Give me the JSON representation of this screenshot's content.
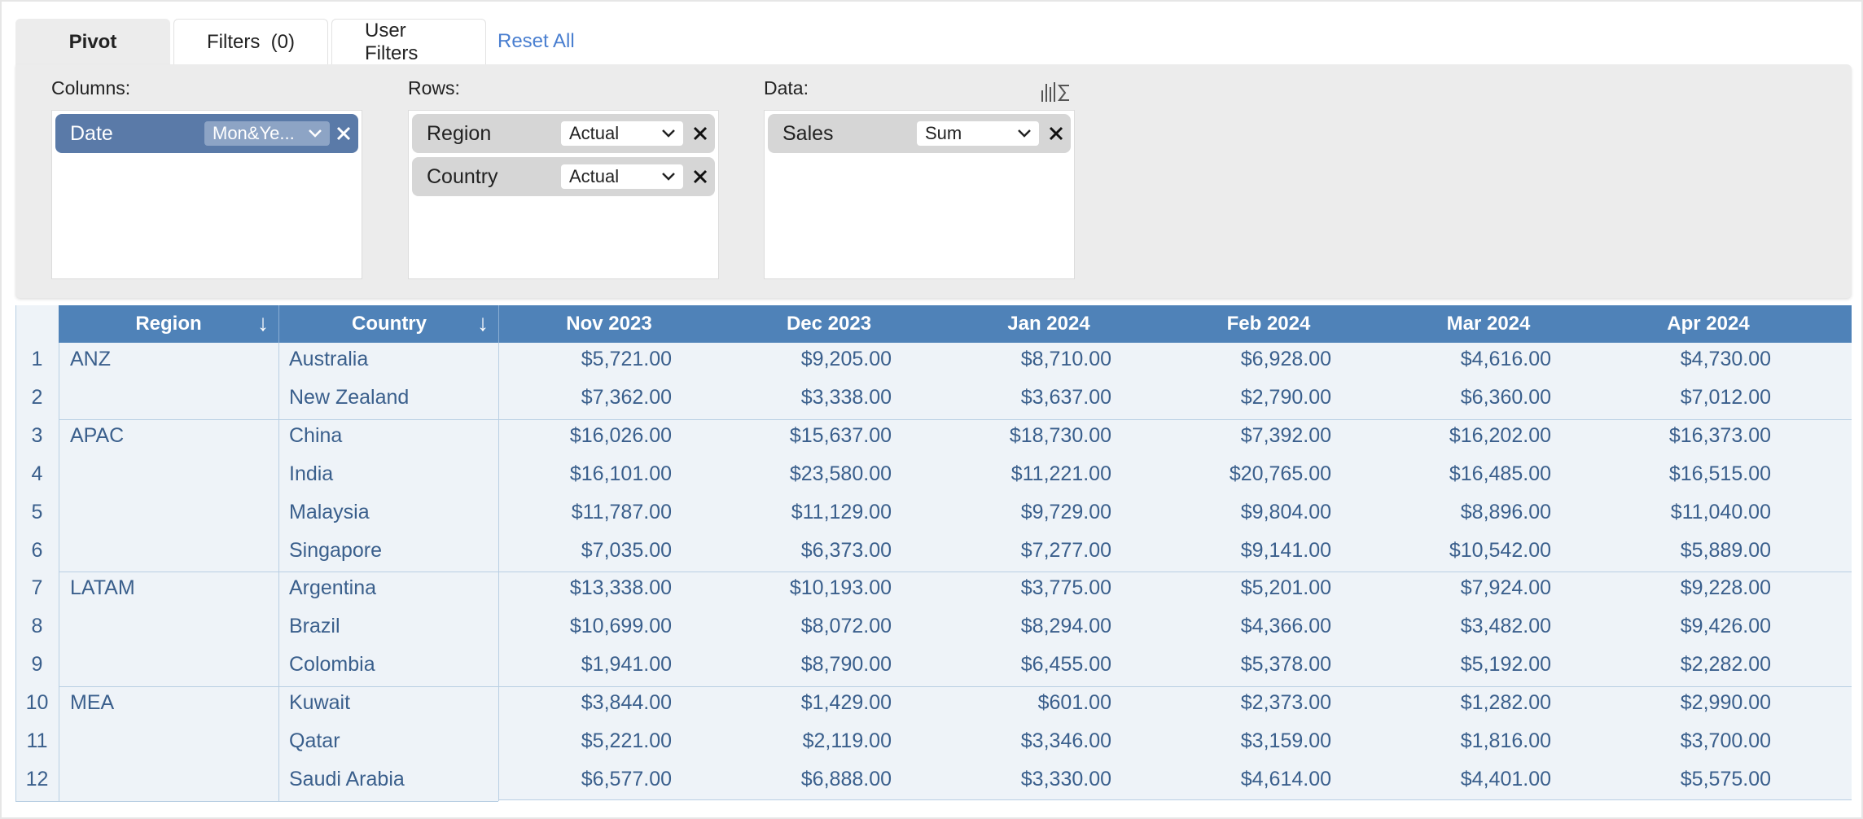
{
  "tabs": {
    "pivot": "Pivot",
    "filters": "Filters  (0)",
    "user_filters": "User Filters",
    "reset_all": "Reset All"
  },
  "zones": {
    "columns": {
      "label": "Columns:",
      "chips": [
        {
          "name": "Date",
          "option": "Mon&Ye..."
        }
      ]
    },
    "rows": {
      "label": "Rows:",
      "chips": [
        {
          "name": "Region",
          "option": "Actual"
        },
        {
          "name": "Country",
          "option": "Actual"
        }
      ]
    },
    "data": {
      "label": "Data:",
      "chips": [
        {
          "name": "Sales",
          "option": "Sum"
        }
      ]
    }
  },
  "grid": {
    "headers": {
      "region": "Region",
      "country": "Country",
      "sort_symbol": "↓",
      "months": [
        "Nov 2023",
        "Dec 2023",
        "Jan 2024",
        "Feb 2024",
        "Mar 2024",
        "Apr 2024"
      ]
    },
    "rows": [
      {
        "n": "1",
        "region": "ANZ",
        "country": "Australia",
        "values": [
          "$5,721.00",
          "$9,205.00",
          "$8,710.00",
          "$6,928.00",
          "$4,616.00",
          "$4,730.00"
        ]
      },
      {
        "n": "2",
        "region": "",
        "country": "New Zealand",
        "values": [
          "$7,362.00",
          "$3,338.00",
          "$3,637.00",
          "$2,790.00",
          "$6,360.00",
          "$7,012.00"
        ]
      },
      {
        "n": "3",
        "region": "APAC",
        "country": "China",
        "values": [
          "$16,026.00",
          "$15,637.00",
          "$18,730.00",
          "$7,392.00",
          "$16,202.00",
          "$16,373.00"
        ]
      },
      {
        "n": "4",
        "region": "",
        "country": "India",
        "values": [
          "$16,101.00",
          "$23,580.00",
          "$11,221.00",
          "$20,765.00",
          "$16,485.00",
          "$16,515.00"
        ]
      },
      {
        "n": "5",
        "region": "",
        "country": "Malaysia",
        "values": [
          "$11,787.00",
          "$11,129.00",
          "$9,729.00",
          "$9,804.00",
          "$8,896.00",
          "$11,040.00"
        ]
      },
      {
        "n": "6",
        "region": "",
        "country": "Singapore",
        "values": [
          "$7,035.00",
          "$6,373.00",
          "$7,277.00",
          "$9,141.00",
          "$10,542.00",
          "$5,889.00"
        ]
      },
      {
        "n": "7",
        "region": "LATAM",
        "country": "Argentina",
        "values": [
          "$13,338.00",
          "$10,193.00",
          "$3,775.00",
          "$5,201.00",
          "$7,924.00",
          "$9,228.00"
        ]
      },
      {
        "n": "8",
        "region": "",
        "country": "Brazil",
        "values": [
          "$10,699.00",
          "$8,072.00",
          "$8,294.00",
          "$4,366.00",
          "$3,482.00",
          "$9,426.00"
        ]
      },
      {
        "n": "9",
        "region": "",
        "country": "Colombia",
        "values": [
          "$1,941.00",
          "$8,790.00",
          "$6,455.00",
          "$5,378.00",
          "$5,192.00",
          "$2,282.00"
        ]
      },
      {
        "n": "10",
        "region": "MEA",
        "country": "Kuwait",
        "values": [
          "$3,844.00",
          "$1,429.00",
          "$601.00",
          "$2,373.00",
          "$1,282.00",
          "$2,990.00"
        ]
      },
      {
        "n": "11",
        "region": "",
        "country": "Qatar",
        "values": [
          "$5,221.00",
          "$2,119.00",
          "$3,346.00",
          "$3,159.00",
          "$1,816.00",
          "$3,700.00"
        ]
      },
      {
        "n": "12",
        "region": "",
        "country": "Saudi Arabia",
        "values": [
          "$6,577.00",
          "$6,888.00",
          "$3,330.00",
          "$4,614.00",
          "$4,401.00",
          "$5,575.00"
        ]
      }
    ]
  }
}
